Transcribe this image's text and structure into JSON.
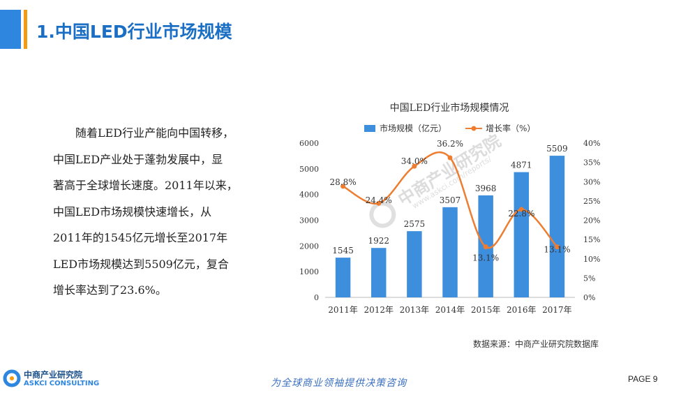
{
  "header": {
    "title": "1.中国LED行业市场规模"
  },
  "body": {
    "lines": [
      "　　随着LED行业产能向中国转移，",
      "中国LED产业处于蓬勃发展中，显",
      "著高于全球增长速度。2011年以来，",
      "中国LED市场规模快速增长，从",
      "2011年的1545亿元增长至2017年",
      "LED市场规模达到5509亿元，复合",
      "增长率达到了23.6%。"
    ]
  },
  "chart_data": {
    "type": "bar",
    "title": "中国LED行业市场规模情况",
    "categories": [
      "2011年",
      "2012年",
      "2013年",
      "2014年",
      "2015年",
      "2016年",
      "2017年"
    ],
    "series": [
      {
        "name": "市场规模（亿元）",
        "type": "bar",
        "axis": "left",
        "color": "#3e8ede",
        "values": [
          1545,
          1922,
          2575,
          3507,
          3968,
          4871,
          5509
        ],
        "labels": [
          "1545",
          "1922",
          "2575",
          "3507",
          "3968",
          "4871",
          "5509"
        ]
      },
      {
        "name": "增长率（%）",
        "type": "line",
        "axis": "right",
        "color": "#ed7d31",
        "values": [
          28.8,
          24.4,
          34.0,
          36.2,
          13.1,
          22.8,
          13.1
        ],
        "labels": [
          "28.8%",
          "24.4%",
          "34.0%",
          "36.2%",
          "13.1%",
          "22.8%",
          "13.1%"
        ]
      }
    ],
    "ylim_left": [
      0,
      6000
    ],
    "yticks_left": [
      "0",
      "1000",
      "2000",
      "3000",
      "4000",
      "5000",
      "6000"
    ],
    "ylim_right": [
      0,
      40
    ],
    "yticks_right": [
      "0%",
      "5%",
      "10%",
      "15%",
      "20%",
      "25%",
      "30%",
      "35%",
      "40%"
    ],
    "legend_position": "top",
    "grid": false
  },
  "source": "数据来源：中商产业研究院数据库",
  "footer": {
    "logo_cn": "中商产业研究院",
    "logo_en": "ASKCI CONSULTING",
    "slogan": "为全球商业领袖提供决策咨询",
    "page": "PAGE  9"
  },
  "watermark": {
    "cn": "中商产业研究院",
    "en": "www.askci.com/reports/"
  },
  "colors": {
    "accent_blue": "#2e86de",
    "accent_orange": "#f39c12",
    "title_blue": "#1a6fc4"
  }
}
